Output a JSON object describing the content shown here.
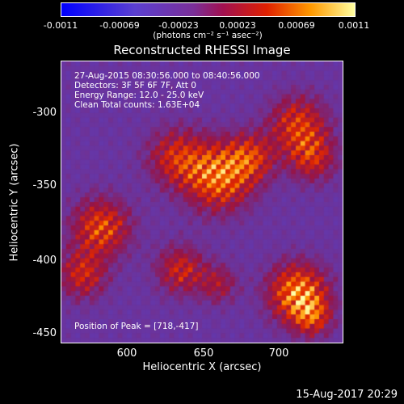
{
  "colorbar": {
    "ticks": [
      "-0.0011",
      "-0.00069",
      "-0.00023",
      "0.00023",
      "0.00069",
      "0.0011"
    ],
    "units": "(photons cm⁻² s⁻¹ asec⁻²)"
  },
  "plot": {
    "title": "Reconstructed RHESSI Image",
    "annotations": {
      "time": "27-Aug-2015 08:30:56.000 to 08:40:56.000",
      "detectors": "Detectors: 3F 5F 6F 7F, Att 0",
      "energy": "Energy Range: 12.0 - 25.0 keV",
      "clean": "Clean     Total counts: 1.63E+04",
      "peak": "Position of Peak = [718,-417]"
    },
    "xlabel": "Heliocentric X (arcsec)",
    "ylabel": "Heliocentric Y (arcsec)",
    "xticks": [
      "600",
      "650",
      "700"
    ],
    "yticks": [
      "-300",
      "-350",
      "-400",
      "-450"
    ]
  },
  "footer": {
    "timestamp": "15-Aug-2017 20:29"
  },
  "colors": {
    "background": "#000000",
    "text": "#ffffff"
  }
}
